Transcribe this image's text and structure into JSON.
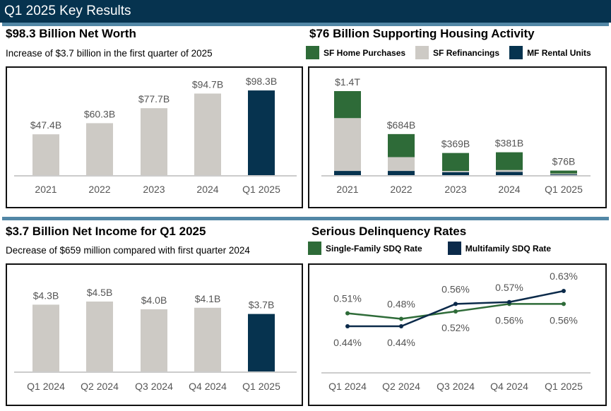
{
  "header": {
    "title": "Q1 2025 Key Results"
  },
  "colors": {
    "navy": "#06334f",
    "green": "#2e6b38",
    "gray": "#cdcac5",
    "mfline": "#0b2a4a"
  },
  "panels": {
    "net_worth": {
      "title": "$98.3 Billion Net Worth",
      "subtitle": "Increase of $3.7 billion in the first quarter of 2025"
    },
    "housing": {
      "title": "$76 Billion Supporting Housing Activity",
      "legend": [
        "SF Home Purchases",
        "SF Refinancings",
        "MF Rental Units"
      ]
    },
    "net_income": {
      "title": "$3.7 Billion Net Income for Q1 2025",
      "subtitle": "Decrease of $659 million compared with first quarter 2024"
    },
    "sdq": {
      "title": "Serious Delinquency Rates",
      "legend": [
        "Single-Family SDQ Rate",
        "Multifamily SDQ Rate"
      ]
    }
  },
  "chart_data": [
    {
      "id": "net_worth",
      "type": "bar",
      "categories": [
        "2021",
        "2022",
        "2023",
        "2024",
        "Q1 2025"
      ],
      "values": [
        47.4,
        60.3,
        77.7,
        94.7,
        98.3
      ],
      "labels": [
        "$47.4B",
        "$60.3B",
        "$77.7B",
        "$94.7B",
        "$98.3B"
      ],
      "unit": "$B",
      "highlight_last": true
    },
    {
      "id": "housing",
      "type": "bar",
      "stacked": true,
      "categories": [
        "2021",
        "2022",
        "2023",
        "2024",
        "Q1 2025"
      ],
      "series": [
        {
          "name": "MF Rental Units",
          "values": [
            70,
            70,
            50,
            55,
            13
          ]
        },
        {
          "name": "SF Refinancings",
          "values": [
            880,
            230,
            20,
            30,
            13
          ]
        },
        {
          "name": "SF Home Purchases",
          "values": [
            450,
            384,
            299,
            296,
            50
          ]
        }
      ],
      "labels": [
        "$1.4T",
        "$684B",
        "$369B",
        "$381B",
        "$76B"
      ],
      "unit": "$B (approx.)"
    },
    {
      "id": "net_income",
      "type": "bar",
      "categories": [
        "Q1 2024",
        "Q2 2024",
        "Q3 2024",
        "Q4 2024",
        "Q1 2025"
      ],
      "values": [
        4.3,
        4.5,
        4.0,
        4.1,
        3.7
      ],
      "labels": [
        "$4.3B",
        "$4.5B",
        "$4.0B",
        "$4.1B",
        "$3.7B"
      ],
      "unit": "$B",
      "highlight_last": true
    },
    {
      "id": "sdq",
      "type": "line",
      "categories": [
        "Q1 2024",
        "Q2 2024",
        "Q3 2024",
        "Q4 2024",
        "Q1 2025"
      ],
      "series": [
        {
          "name": "Single-Family SDQ Rate",
          "values": [
            0.51,
            0.48,
            0.52,
            0.56,
            0.56
          ],
          "labels": [
            "0.51%",
            "0.48%",
            "0.52%",
            "0.56%",
            "0.56%"
          ]
        },
        {
          "name": "Multifamily SDQ Rate",
          "values": [
            0.44,
            0.44,
            0.56,
            0.57,
            0.63
          ],
          "labels": [
            "0.44%",
            "0.44%",
            "0.56%",
            "0.57%",
            "0.63%"
          ]
        }
      ],
      "unit": "%"
    }
  ]
}
